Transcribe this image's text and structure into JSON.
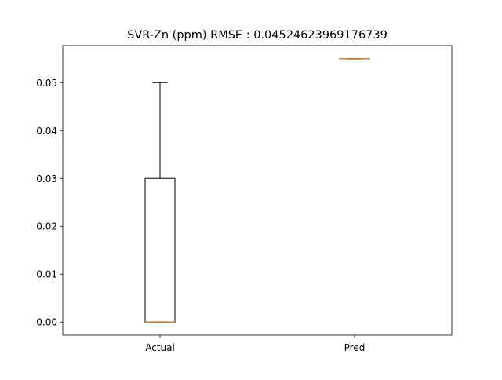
{
  "chart_data": {
    "type": "box",
    "title": "SVR-Zn (ppm) RMSE : 0.04524623969176739",
    "xlabel": "",
    "ylabel": "",
    "categories": [
      "Actual",
      "Pred"
    ],
    "ylim": [
      -0.00275,
      0.05775
    ],
    "yticks": [
      0.0,
      0.01,
      0.02,
      0.03,
      0.04,
      0.05
    ],
    "ytick_labels": [
      "0.00",
      "0.01",
      "0.02",
      "0.03",
      "0.04",
      "0.05"
    ],
    "grid": false,
    "boxes": [
      {
        "name": "Actual",
        "whisker_low": 0.0,
        "q1": 0.0,
        "median": 0.0,
        "q3": 0.03,
        "whisker_high": 0.05
      },
      {
        "name": "Pred",
        "whisker_low": 0.055,
        "q1": 0.055,
        "median": 0.055,
        "q3": 0.055,
        "whisker_high": 0.055
      }
    ],
    "colors": {
      "box": "#000000",
      "median": "#ff7f0e",
      "axes": "#000000",
      "background": "#ffffff"
    }
  }
}
